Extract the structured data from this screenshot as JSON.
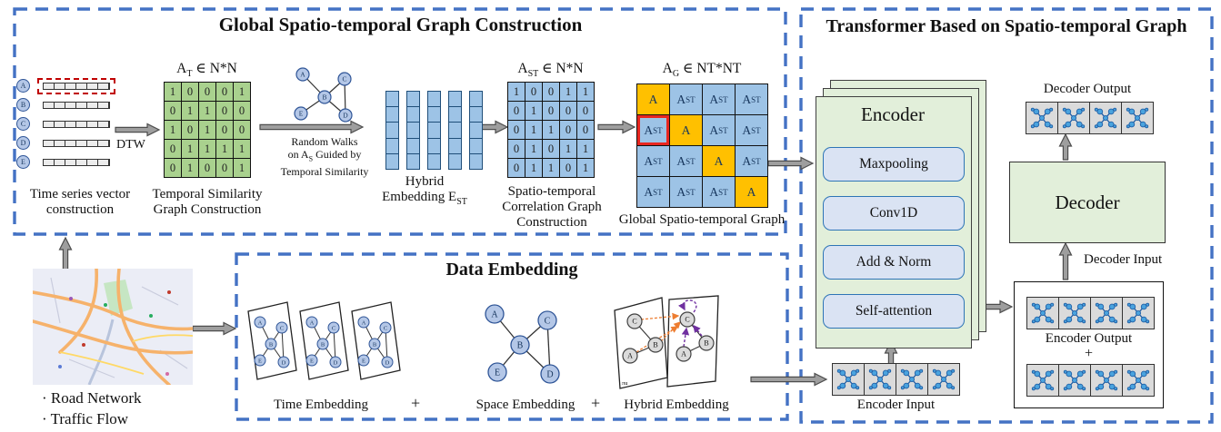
{
  "colors": {
    "frame_blue": "#4472C4",
    "matrix_green": "#A9D18E",
    "matrix_blue": "#9DC3E6",
    "diag_orange": "#FFC000",
    "highlight_red": "#E8261F",
    "ts_highlight_red": "#C00000",
    "encoder_green": "#E2EFDA",
    "layer_blue": "#DAE3F3",
    "node_blue": "#B4C7E7",
    "arrow_gray": "#9E9E9E",
    "orange_arrow": "#ED7D31",
    "purple_arrow": "#7030A0"
  },
  "global_section": {
    "title": "Global Spatio-temporal Graph Construction",
    "time_series": {
      "nodes": [
        "A",
        "B",
        "C",
        "D",
        "E"
      ],
      "segments": 6,
      "caption": "Time series vector construction"
    },
    "dtw_label": "DTW",
    "at_matrix": {
      "title": {
        "base": "A",
        "sub": "T",
        "rest": " ∈ N*N"
      },
      "values": [
        [
          1,
          0,
          0,
          0,
          1
        ],
        [
          0,
          1,
          1,
          0,
          0
        ],
        [
          1,
          0,
          1,
          0,
          0
        ],
        [
          0,
          1,
          1,
          1,
          1
        ],
        [
          0,
          1,
          0,
          0,
          1
        ]
      ],
      "caption": "Temporal Similarity Graph Construction"
    },
    "random_walk": {
      "nodes": [
        "A",
        "B",
        "C",
        "D",
        "E"
      ],
      "caption_line1": "Random Walks",
      "caption_line2_a": "on A",
      "caption_line2_sub": "S",
      "caption_line2_b": " Guided by",
      "caption_line3": "Temporal Similarity"
    },
    "hybrid_embedding": {
      "columns": 5,
      "cells_per_column": 5,
      "caption_line1": "Hybrid",
      "caption_line2_a": "Embedding E",
      "caption_line2_sub": "ST"
    },
    "ast_matrix": {
      "title": {
        "base": "A",
        "sub": "ST",
        "rest": " ∈ N*N"
      },
      "values": [
        [
          1,
          0,
          0,
          1,
          1
        ],
        [
          0,
          1,
          0,
          0,
          0
        ],
        [
          0,
          1,
          1,
          0,
          0
        ],
        [
          0,
          1,
          0,
          1,
          1
        ],
        [
          0,
          1,
          1,
          0,
          1
        ]
      ],
      "caption": "Spatio-temporal Correlation Graph Construction"
    },
    "ag_matrix": {
      "title": {
        "base": "A",
        "sub": "G",
        "rest": " ∈ NT*NT"
      },
      "size": 4,
      "diagonal_label": "A",
      "off_diagonal": {
        "base": "A",
        "sub": "ST"
      },
      "highlight_cell": [
        1,
        0
      ],
      "caption": "Global Spatio-temporal Graph"
    }
  },
  "source": {
    "bullets": [
      "· Road Network",
      "· Traffic Flow"
    ]
  },
  "data_embedding": {
    "title": "Data Embedding",
    "plus": "+",
    "time_embedding": {
      "label": "Time Embedding",
      "planes": 3,
      "nodes": [
        "A",
        "B",
        "C",
        "D",
        "E"
      ]
    },
    "space_embedding": {
      "label": "Space Embedding",
      "nodes": [
        "A",
        "B",
        "C",
        "D",
        "E"
      ]
    },
    "hybrid_embedding": {
      "label": "Hybrid Embedding",
      "left_nodes": [
        "C",
        "B",
        "A"
      ],
      "right_nodes": [
        "C",
        "B",
        "A"
      ],
      "plane_tag": "πu"
    }
  },
  "transformer": {
    "title": "Transformer Based on Spatio-temporal Graph",
    "encoder": {
      "title": "Encoder",
      "layers": [
        "Maxpooling",
        "Conv1D",
        "Add & Norm",
        "Self-attention"
      ]
    },
    "io_cells": 4,
    "encoder_input_label": "Encoder Input",
    "encoder_output_label": "Encoder Output",
    "plus": "+",
    "decoder_label": "Decoder",
    "decoder_input_label": "Decoder Input",
    "decoder_output_label": "Decoder Output"
  }
}
